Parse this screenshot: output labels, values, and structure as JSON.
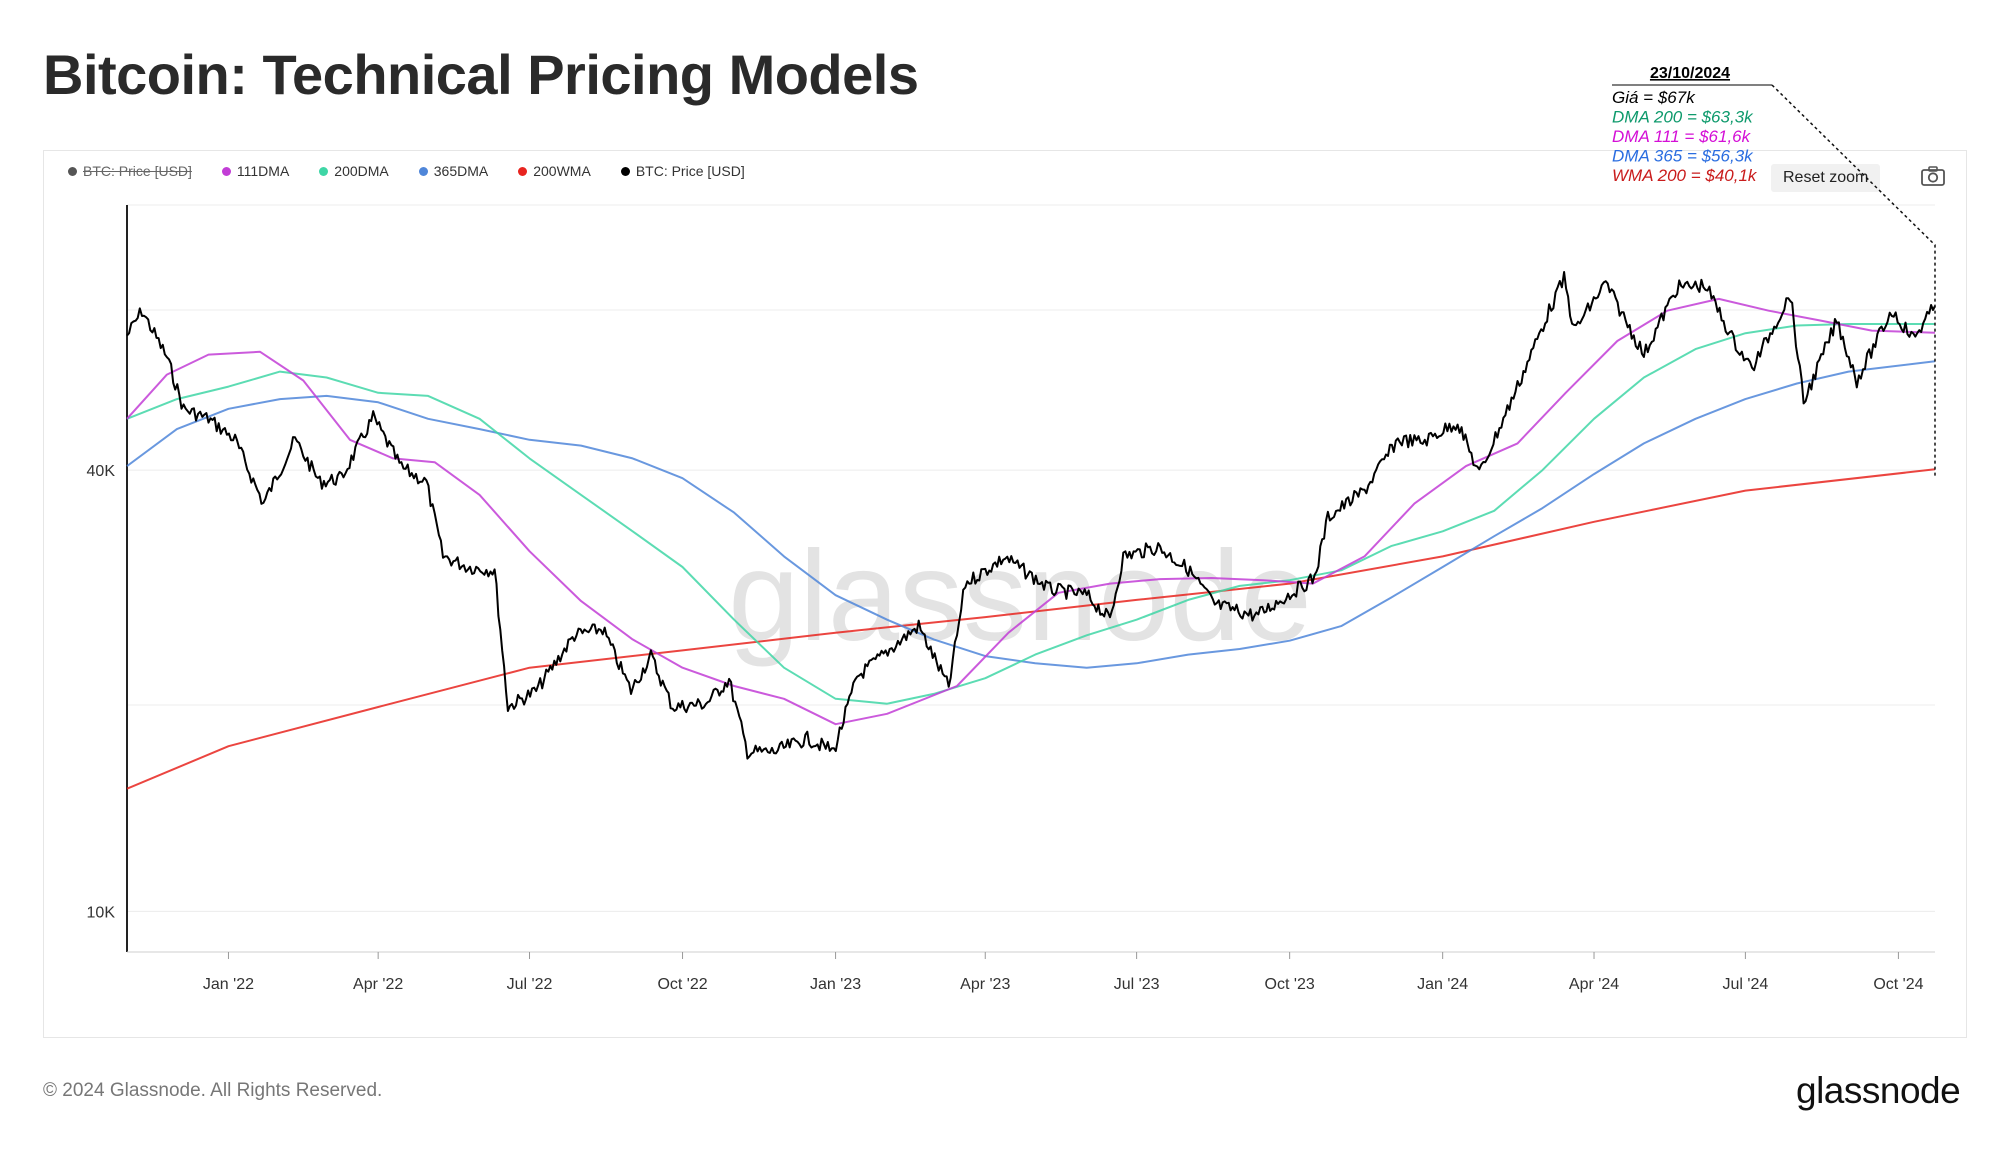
{
  "page_title": "Bitcoin: Technical Pricing Models",
  "legend": [
    {
      "label": "BTC: Price [USD]",
      "color": "#555555",
      "hidden": true
    },
    {
      "label": "111DMA",
      "color": "#c23dd6"
    },
    {
      "label": "200DMA",
      "color": "#3fd6a6"
    },
    {
      "label": "365DMA",
      "color": "#4f86d9"
    },
    {
      "label": "200WMA",
      "color": "#e8241f"
    },
    {
      "label": "BTC: Price [USD]",
      "color": "#000000"
    }
  ],
  "reset_zoom_label": "Reset zoom",
  "camera_icon": "camera-icon",
  "watermark": "glassnode",
  "annotation": {
    "date": "23/10/2024",
    "lines": [
      {
        "text": "Giá = $67k",
        "color": "#000000"
      },
      {
        "text": "DMA 200 = $63,3k",
        "color": "#0e9a6c"
      },
      {
        "text": "DMA 111 = $61,6k",
        "color": "#d40fd6"
      },
      {
        "text": "DMA 365 = $56,3k",
        "color": "#2a6de0"
      },
      {
        "text": "WMA 200 = $40,1k",
        "color": "#c91c1c"
      }
    ]
  },
  "footer": "© 2024 Glassnode. All Rights Reserved.",
  "brand": "glassnode",
  "chart_data": {
    "type": "line",
    "title": "Bitcoin: Technical Pricing Models",
    "y_scale": "log",
    "ylim": [
      8800,
      92000
    ],
    "y_ticks": [
      {
        "value": 10000,
        "label": "10K"
      },
      {
        "value": 40000,
        "label": "40K"
      }
    ],
    "x_range": [
      "2021-11-01",
      "2024-10-23"
    ],
    "x_ticks": [
      {
        "date": "2022-01-01",
        "label": "Jan '22"
      },
      {
        "date": "2022-04-01",
        "label": "Apr '22"
      },
      {
        "date": "2022-07-01",
        "label": "Jul '22"
      },
      {
        "date": "2022-10-01",
        "label": "Oct '22"
      },
      {
        "date": "2023-01-01",
        "label": "Jan '23"
      },
      {
        "date": "2023-04-01",
        "label": "Apr '23"
      },
      {
        "date": "2023-07-01",
        "label": "Jul '23"
      },
      {
        "date": "2023-10-01",
        "label": "Oct '23"
      },
      {
        "date": "2024-01-01",
        "label": "Jan '24"
      },
      {
        "date": "2024-04-01",
        "label": "Apr '24"
      },
      {
        "date": "2024-07-01",
        "label": "Jul '24"
      },
      {
        "date": "2024-10-01",
        "label": "Oct '24"
      }
    ],
    "grid": true,
    "series": [
      {
        "name": "BTC: Price [USD]",
        "color": "#000000",
        "points": [
          [
            "2021-11-01",
            61000
          ],
          [
            "2021-11-10",
            66000
          ],
          [
            "2021-11-25",
            57000
          ],
          [
            "2021-12-05",
            48500
          ],
          [
            "2021-12-20",
            47000
          ],
          [
            "2022-01-05",
            44000
          ],
          [
            "2022-01-22",
            36000
          ],
          [
            "2022-02-10",
            44000
          ],
          [
            "2022-02-25",
            38500
          ],
          [
            "2022-03-10",
            39000
          ],
          [
            "2022-03-29",
            47200
          ],
          [
            "2022-04-15",
            40300
          ],
          [
            "2022-04-30",
            38500
          ],
          [
            "2022-05-10",
            30500
          ],
          [
            "2022-05-25",
            29500
          ],
          [
            "2022-06-10",
            29200
          ],
          [
            "2022-06-18",
            19000
          ],
          [
            "2022-07-05",
            20000
          ],
          [
            "2022-07-28",
            23800
          ],
          [
            "2022-08-14",
            24300
          ],
          [
            "2022-08-31",
            20000
          ],
          [
            "2022-09-12",
            22300
          ],
          [
            "2022-09-25",
            19000
          ],
          [
            "2022-10-15",
            19200
          ],
          [
            "2022-10-29",
            20700
          ],
          [
            "2022-11-09",
            16500
          ],
          [
            "2022-11-25",
            16500
          ],
          [
            "2022-12-15",
            17200
          ],
          [
            "2022-12-31",
            16550
          ],
          [
            "2023-01-14",
            20900
          ],
          [
            "2023-02-05",
            23000
          ],
          [
            "2023-02-20",
            24500
          ],
          [
            "2023-03-10",
            20200
          ],
          [
            "2023-03-20",
            28000
          ],
          [
            "2023-04-13",
            30400
          ],
          [
            "2023-05-10",
            27500
          ],
          [
            "2023-06-01",
            27000
          ],
          [
            "2023-06-15",
            25000
          ],
          [
            "2023-06-23",
            30500
          ],
          [
            "2023-07-14",
            31400
          ],
          [
            "2023-08-01",
            29300
          ],
          [
            "2023-08-17",
            26200
          ],
          [
            "2023-09-11",
            25300
          ],
          [
            "2023-09-30",
            27000
          ],
          [
            "2023-10-16",
            28500
          ],
          [
            "2023-10-24",
            34500
          ],
          [
            "2023-11-15",
            37500
          ],
          [
            "2023-12-05",
            44000
          ],
          [
            "2023-12-20",
            43700
          ],
          [
            "2024-01-10",
            46500
          ],
          [
            "2024-01-23",
            39500
          ],
          [
            "2024-02-15",
            52000
          ],
          [
            "2024-03-05",
            66000
          ],
          [
            "2024-03-14",
            73000
          ],
          [
            "2024-03-20",
            62000
          ],
          [
            "2024-04-08",
            72000
          ],
          [
            "2024-04-20",
            64000
          ],
          [
            "2024-05-01",
            57500
          ],
          [
            "2024-05-21",
            71000
          ],
          [
            "2024-06-07",
            71500
          ],
          [
            "2024-06-24",
            60000
          ],
          [
            "2024-07-05",
            55000
          ],
          [
            "2024-07-28",
            69500
          ],
          [
            "2024-08-05",
            49500
          ],
          [
            "2024-08-25",
            64000
          ],
          [
            "2024-09-06",
            53000
          ],
          [
            "2024-09-27",
            66000
          ],
          [
            "2024-10-10",
            60500
          ],
          [
            "2024-10-23",
            67000
          ]
        ]
      },
      {
        "name": "111DMA",
        "color": "#c23dd6",
        "points": [
          [
            "2021-11-01",
            47000
          ],
          [
            "2021-11-25",
            54000
          ],
          [
            "2021-12-20",
            57500
          ],
          [
            "2022-01-20",
            58000
          ],
          [
            "2022-02-15",
            53000
          ],
          [
            "2022-03-15",
            44000
          ],
          [
            "2022-04-10",
            41500
          ],
          [
            "2022-05-05",
            41000
          ],
          [
            "2022-06-01",
            37000
          ],
          [
            "2022-07-01",
            31000
          ],
          [
            "2022-08-01",
            26500
          ],
          [
            "2022-09-01",
            23500
          ],
          [
            "2022-10-01",
            21500
          ],
          [
            "2022-11-01",
            20300
          ],
          [
            "2022-12-01",
            19500
          ],
          [
            "2023-01-01",
            18000
          ],
          [
            "2023-02-01",
            18600
          ],
          [
            "2023-03-15",
            20300
          ],
          [
            "2023-04-15",
            24000
          ],
          [
            "2023-05-15",
            27200
          ],
          [
            "2023-06-15",
            28000
          ],
          [
            "2023-07-15",
            28400
          ],
          [
            "2023-08-15",
            28500
          ],
          [
            "2023-09-15",
            28300
          ],
          [
            "2023-10-15",
            28000
          ],
          [
            "2023-11-15",
            30500
          ],
          [
            "2023-12-15",
            36000
          ],
          [
            "2024-01-15",
            40500
          ],
          [
            "2024-02-15",
            43500
          ],
          [
            "2024-03-15",
            51000
          ],
          [
            "2024-04-15",
            60000
          ],
          [
            "2024-05-15",
            66000
          ],
          [
            "2024-06-15",
            68500
          ],
          [
            "2024-07-15",
            66000
          ],
          [
            "2024-08-15",
            64000
          ],
          [
            "2024-09-15",
            62000
          ],
          [
            "2024-10-23",
            61600
          ]
        ]
      },
      {
        "name": "200DMA",
        "color": "#3fd6a6",
        "points": [
          [
            "2021-11-01",
            47000
          ],
          [
            "2021-12-01",
            50000
          ],
          [
            "2022-01-01",
            52000
          ],
          [
            "2022-02-01",
            54500
          ],
          [
            "2022-03-01",
            53500
          ],
          [
            "2022-04-01",
            51000
          ],
          [
            "2022-05-01",
            50500
          ],
          [
            "2022-06-01",
            47000
          ],
          [
            "2022-07-01",
            41500
          ],
          [
            "2022-08-01",
            37000
          ],
          [
            "2022-09-01",
            33000
          ],
          [
            "2022-10-01",
            29500
          ],
          [
            "2022-11-01",
            25000
          ],
          [
            "2022-12-01",
            21500
          ],
          [
            "2023-01-01",
            19500
          ],
          [
            "2023-02-01",
            19200
          ],
          [
            "2023-03-01",
            19800
          ],
          [
            "2023-04-01",
            20800
          ],
          [
            "2023-05-01",
            22400
          ],
          [
            "2023-06-01",
            23800
          ],
          [
            "2023-07-01",
            25000
          ],
          [
            "2023-08-01",
            26600
          ],
          [
            "2023-09-01",
            27800
          ],
          [
            "2023-10-01",
            28300
          ],
          [
            "2023-11-01",
            29200
          ],
          [
            "2023-12-01",
            31500
          ],
          [
            "2024-01-01",
            33000
          ],
          [
            "2024-02-01",
            35200
          ],
          [
            "2024-03-01",
            40000
          ],
          [
            "2024-04-01",
            47000
          ],
          [
            "2024-05-01",
            53500
          ],
          [
            "2024-06-01",
            58500
          ],
          [
            "2024-07-01",
            61500
          ],
          [
            "2024-08-01",
            63000
          ],
          [
            "2024-09-01",
            63300
          ],
          [
            "2024-10-23",
            63300
          ]
        ]
      },
      {
        "name": "365DMA",
        "color": "#4f86d9",
        "points": [
          [
            "2021-11-01",
            40500
          ],
          [
            "2021-12-01",
            45500
          ],
          [
            "2022-01-01",
            48500
          ],
          [
            "2022-02-01",
            50000
          ],
          [
            "2022-03-01",
            50500
          ],
          [
            "2022-04-01",
            49500
          ],
          [
            "2022-05-01",
            47000
          ],
          [
            "2022-06-01",
            45500
          ],
          [
            "2022-07-01",
            44000
          ],
          [
            "2022-08-01",
            43200
          ],
          [
            "2022-09-01",
            41500
          ],
          [
            "2022-10-01",
            39000
          ],
          [
            "2022-11-01",
            35000
          ],
          [
            "2022-12-01",
            30500
          ],
          [
            "2023-01-01",
            27000
          ],
          [
            "2023-02-01",
            25000
          ],
          [
            "2023-03-01",
            23500
          ],
          [
            "2023-04-01",
            22300
          ],
          [
            "2023-05-01",
            21800
          ],
          [
            "2023-06-01",
            21500
          ],
          [
            "2023-07-01",
            21800
          ],
          [
            "2023-08-01",
            22400
          ],
          [
            "2023-09-01",
            22800
          ],
          [
            "2023-10-01",
            23400
          ],
          [
            "2023-11-01",
            24500
          ],
          [
            "2023-12-01",
            26800
          ],
          [
            "2024-01-01",
            29500
          ],
          [
            "2024-02-01",
            32500
          ],
          [
            "2024-03-01",
            35500
          ],
          [
            "2024-04-01",
            39500
          ],
          [
            "2024-05-01",
            43500
          ],
          [
            "2024-06-01",
            47000
          ],
          [
            "2024-07-01",
            50000
          ],
          [
            "2024-08-01",
            52500
          ],
          [
            "2024-09-01",
            54500
          ],
          [
            "2024-10-23",
            56300
          ]
        ]
      },
      {
        "name": "200WMA",
        "color": "#e8241f",
        "points": [
          [
            "2021-11-01",
            14700
          ],
          [
            "2022-01-01",
            16800
          ],
          [
            "2022-04-01",
            19000
          ],
          [
            "2022-07-01",
            21500
          ],
          [
            "2022-10-01",
            22700
          ],
          [
            "2023-01-01",
            24000
          ],
          [
            "2023-04-01",
            25200
          ],
          [
            "2023-07-01",
            26600
          ],
          [
            "2023-10-01",
            28000
          ],
          [
            "2024-01-01",
            30500
          ],
          [
            "2024-04-01",
            34000
          ],
          [
            "2024-07-01",
            37500
          ],
          [
            "2024-10-23",
            40100
          ]
        ]
      }
    ]
  }
}
